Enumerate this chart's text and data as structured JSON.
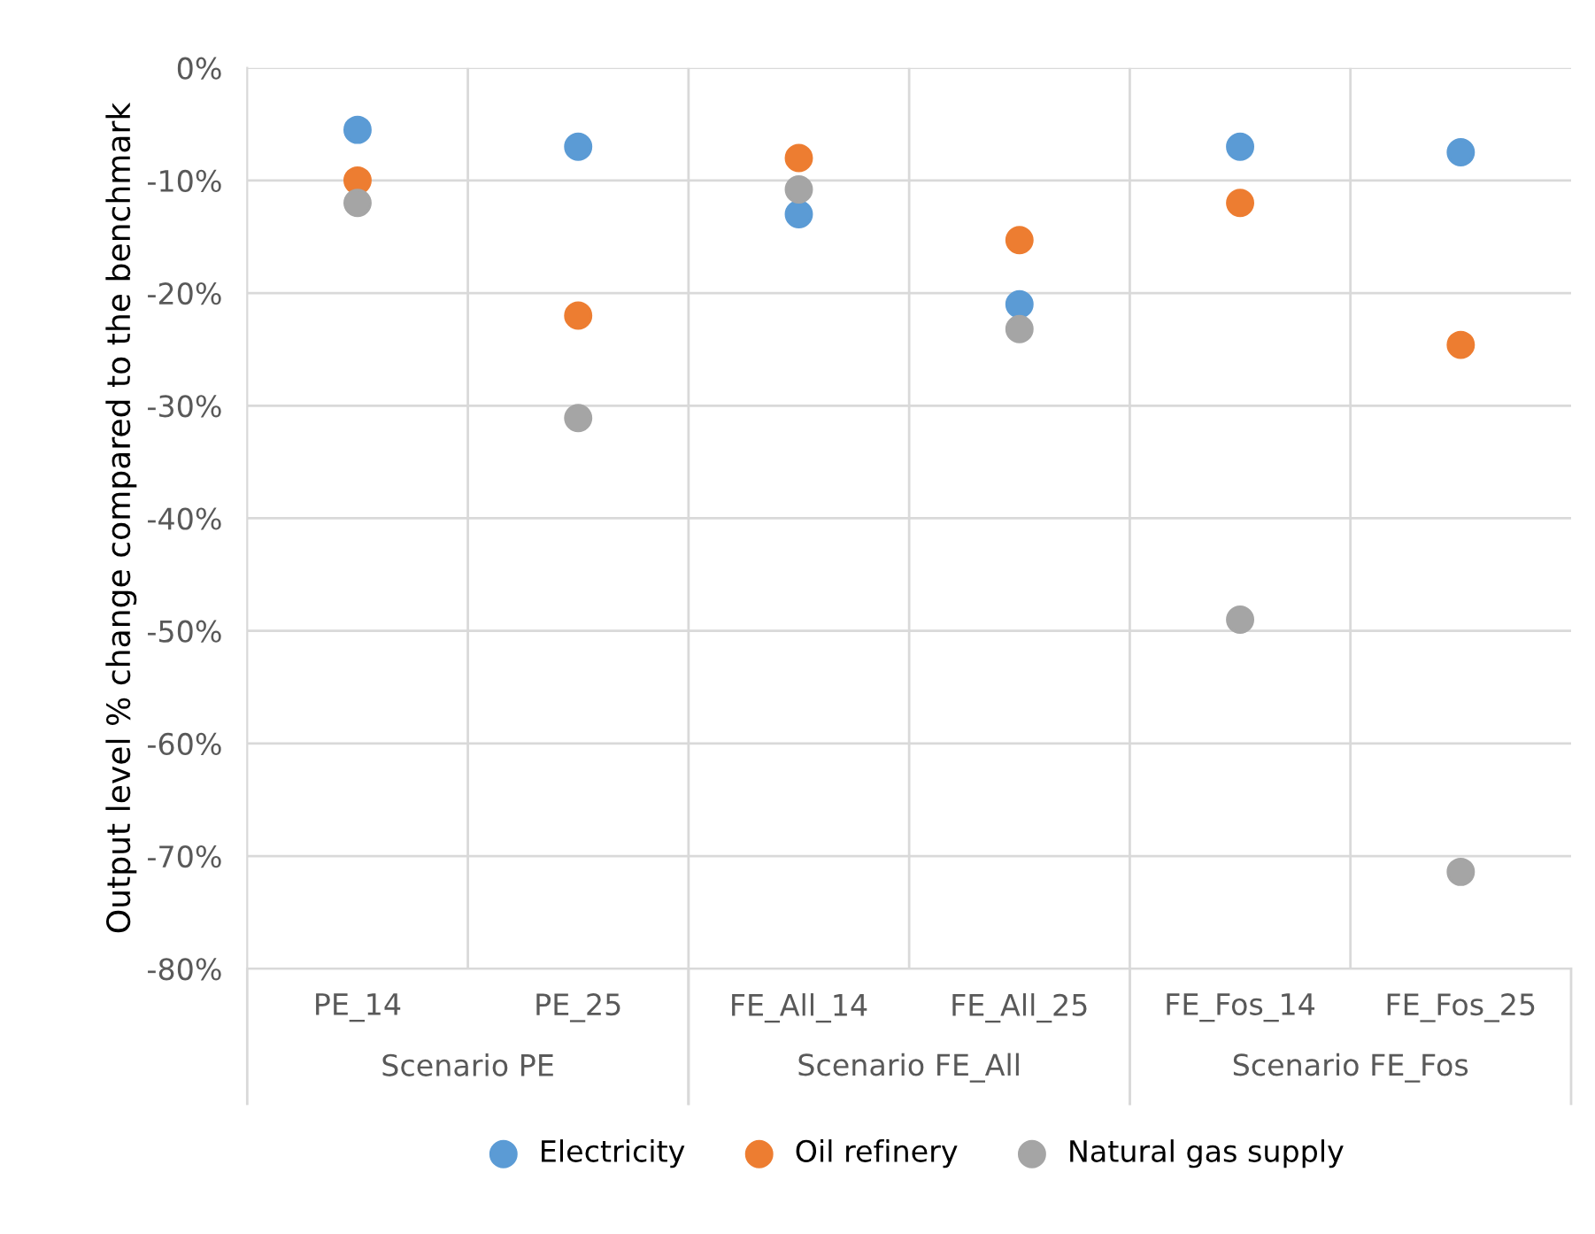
{
  "chart_data": {
    "type": "scatter",
    "ylabel": "Output level % change compared to the benchmark",
    "categories": [
      "PE_14",
      "PE_25",
      "FE_All_14",
      "FE_All_25",
      "FE_Fos_14",
      "FE_Fos_25"
    ],
    "series": [
      {
        "name": "Electricity",
        "color": "#5b9bd5",
        "values": [
          -5.5,
          -7,
          -13,
          -21,
          -7,
          -7.5
        ]
      },
      {
        "name": "Oil refinery",
        "color": "#ed7d31",
        "values": [
          -10,
          -22,
          -8,
          -15.3,
          -12,
          -24.6
        ]
      },
      {
        "name": "Natural gas supply",
        "color": "#a5a5a5",
        "values": [
          -12,
          -31.1,
          -10.8,
          -23.2,
          -49,
          -71.4
        ]
      }
    ],
    "ylim": [
      -80,
      0
    ],
    "yticks": [
      {
        "value": -80,
        "label": "-80%"
      },
      {
        "value": -70,
        "label": "-70%"
      },
      {
        "value": -60,
        "label": "-60%"
      },
      {
        "value": -50,
        "label": "-50%"
      },
      {
        "value": -40,
        "label": "-40%"
      },
      {
        "value": -30,
        "label": "-30%"
      },
      {
        "value": -20,
        "label": "-20%"
      },
      {
        "value": -10,
        "label": "-10%"
      },
      {
        "value": 0,
        "label": "0%"
      }
    ],
    "annotations": [
      "Scenario PE",
      "Scenario FE_All",
      "Scenario FE_Fos"
    ],
    "grid": true,
    "legend": "bottom",
    "marker": "circle"
  }
}
